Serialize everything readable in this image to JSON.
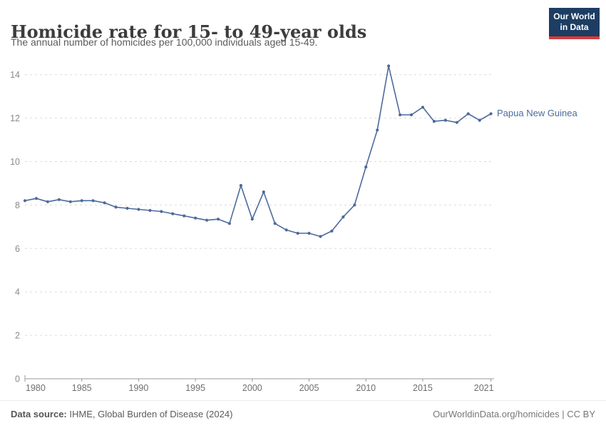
{
  "header": {
    "title": "Homicide rate for 15- to 49-year olds",
    "subtitle": "The annual number of homicides per 100,000 individuals aged 15-49.",
    "logo": {
      "line1": "Our World",
      "line2": "in Data"
    }
  },
  "chart_data": {
    "type": "line",
    "title": "Homicide rate for 15- to 49-year olds",
    "xlabel": "",
    "ylabel": "",
    "xlim": [
      1980,
      2021
    ],
    "ylim": [
      0,
      14.6
    ],
    "grid": "horizontal-dashed",
    "legend_position": "end-of-line-label",
    "x_ticks": [
      1980,
      1985,
      1990,
      1995,
      2000,
      2005,
      2010,
      2015,
      2021
    ],
    "y_ticks": [
      0,
      2,
      4,
      6,
      8,
      10,
      12,
      14
    ],
    "x": [
      1980,
      1981,
      1982,
      1983,
      1984,
      1985,
      1986,
      1987,
      1988,
      1989,
      1990,
      1991,
      1992,
      1993,
      1994,
      1995,
      1996,
      1997,
      1998,
      1999,
      2000,
      2001,
      2002,
      2003,
      2004,
      2005,
      2006,
      2007,
      2008,
      2009,
      2010,
      2011,
      2012,
      2013,
      2014,
      2015,
      2016,
      2017,
      2018,
      2019,
      2020,
      2021
    ],
    "series": [
      {
        "name": "Papua New Guinea",
        "color": "#4c6a9c",
        "values": [
          8.2,
          8.3,
          8.15,
          8.25,
          8.15,
          8.2,
          8.2,
          8.1,
          7.9,
          7.85,
          7.8,
          7.75,
          7.7,
          7.6,
          7.5,
          7.4,
          7.3,
          7.35,
          7.15,
          8.9,
          7.35,
          8.6,
          7.15,
          6.85,
          6.7,
          6.7,
          6.55,
          6.8,
          7.45,
          8.0,
          9.75,
          11.45,
          14.4,
          12.15,
          12.15,
          12.5,
          11.85,
          11.9,
          11.8,
          12.2,
          11.9,
          12.2
        ]
      }
    ],
    "colors": {
      "grid": "#dcdcdc",
      "axis": "#999999",
      "tick_label": "#8a8a8a",
      "x_label": "#6e6e6e"
    }
  },
  "footer": {
    "source_label": "Data source:",
    "source_text": "IHME, Global Burden of Disease (2024)",
    "credit": "OurWorldinData.org/homicides | CC BY"
  }
}
